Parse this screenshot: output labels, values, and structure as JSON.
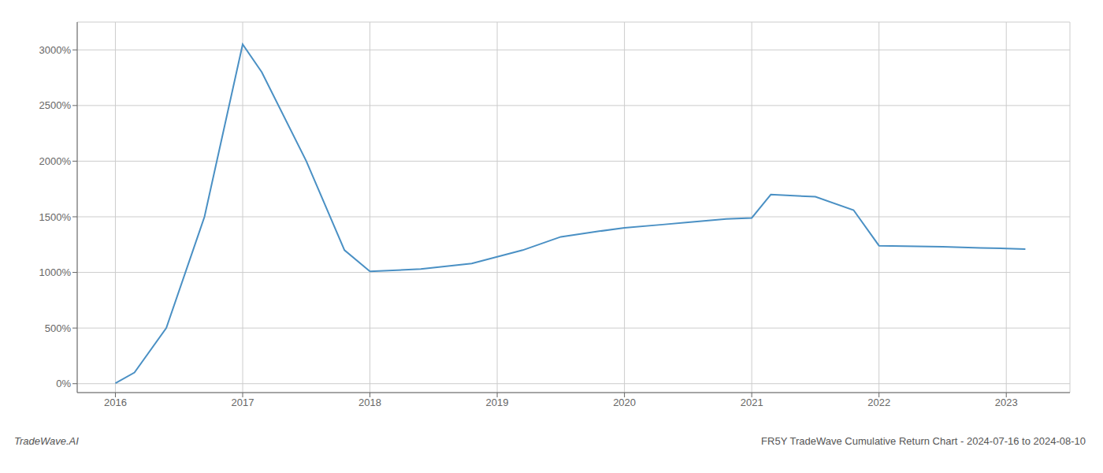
{
  "chart_data": {
    "type": "line",
    "x": [
      2016.0,
      2016.15,
      2016.4,
      2016.7,
      2017.0,
      2017.15,
      2017.5,
      2017.8,
      2018.0,
      2018.4,
      2018.8,
      2019.2,
      2019.5,
      2019.8,
      2020.0,
      2020.3,
      2020.5,
      2020.8,
      2021.0,
      2021.15,
      2021.5,
      2021.8,
      2022.0,
      2022.5,
      2022.8,
      2023.0,
      2023.15
    ],
    "values": [
      5,
      100,
      500,
      1500,
      3050,
      2800,
      2000,
      1200,
      1010,
      1030,
      1080,
      1200,
      1320,
      1370,
      1400,
      1430,
      1450,
      1480,
      1490,
      1700,
      1680,
      1560,
      1240,
      1230,
      1220,
      1215,
      1210
    ],
    "color": "#4a90c4",
    "xlim": [
      2015.7,
      2023.5
    ],
    "ylim": [
      -80,
      3250
    ],
    "xticks": [
      2016,
      2017,
      2018,
      2019,
      2020,
      2021,
      2022,
      2023
    ],
    "yticks": [
      {
        "value": 0,
        "label": "0%"
      },
      {
        "value": 500,
        "label": "500%"
      },
      {
        "value": 1000,
        "label": "1000%"
      },
      {
        "value": 1500,
        "label": "1500%"
      },
      {
        "value": 2000,
        "label": "2000%"
      },
      {
        "value": 2500,
        "label": "2500%"
      },
      {
        "value": 3000,
        "label": "3000%"
      }
    ],
    "grid": true,
    "annotations": [
      "TradeWave.AI",
      "FR5Y TradeWave Cumulative Return Chart - 2024-07-16 to 2024-08-10"
    ]
  }
}
